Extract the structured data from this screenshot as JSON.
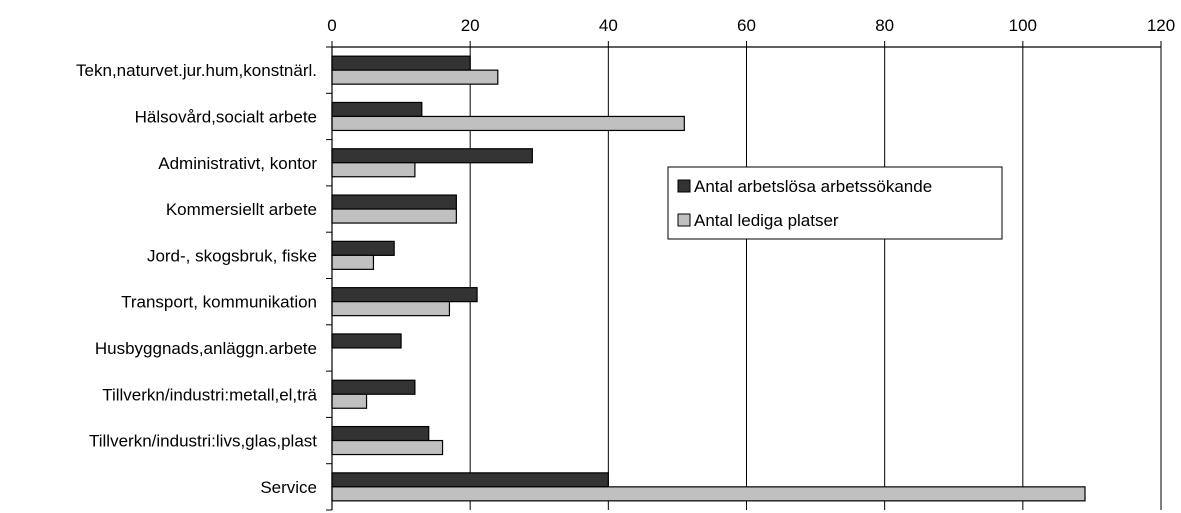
{
  "chart_data": {
    "type": "bar",
    "orientation": "horizontal",
    "categories": [
      "Tekn,naturvet.jur.hum,konstnärl.",
      "Hälsovård,socialt arbete",
      "Administrativt, kontor",
      "Kommersiellt arbete",
      "Jord-, skogsbruk, fiske",
      "Transport, kommunikation",
      "Husbyggnads,anläggn.arbete",
      "Tillverkn/industri:metall,el,trä",
      "Tillverkn/industri:livs,glas,plast",
      "Service"
    ],
    "series": [
      {
        "name": "Antal arbetslösa arbetssökande",
        "color": "#333333",
        "values": [
          20,
          13,
          29,
          18,
          9,
          21,
          10,
          12,
          14,
          40
        ]
      },
      {
        "name": "Antal lediga platser",
        "color": "#c0c0c0",
        "values": [
          24,
          51,
          12,
          18,
          6,
          17,
          0,
          5,
          16,
          109
        ]
      }
    ],
    "xlim": [
      0,
      120
    ],
    "xticks": [
      "0",
      "20",
      "40",
      "60",
      "80",
      "100",
      "120"
    ],
    "axis_position": "top",
    "grid": true,
    "legend_position": "center-right"
  }
}
